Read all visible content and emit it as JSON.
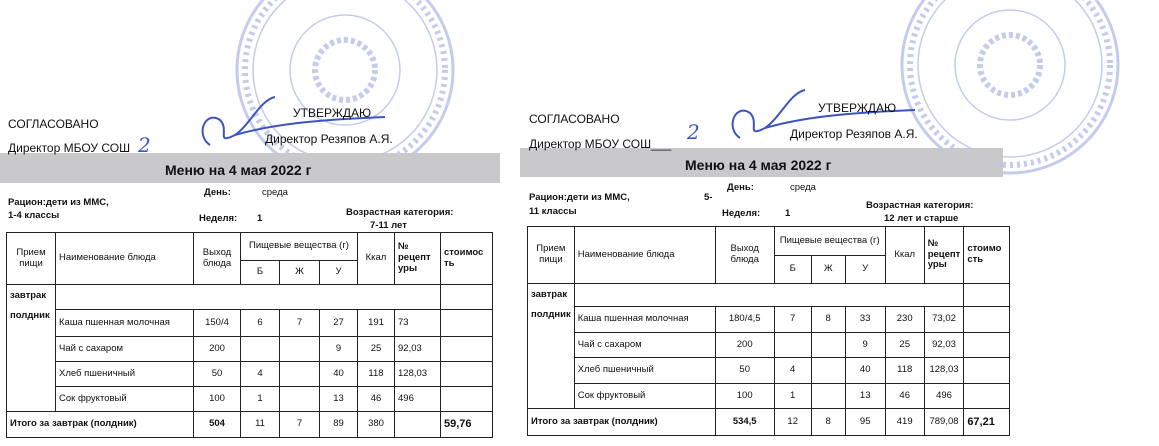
{
  "colors": {
    "stamp": "#7a8fd6",
    "signature": "#3d55c4",
    "band": "#c9c9cb"
  },
  "panels": [
    {
      "agreed": "СОГЛАСОВАНО",
      "director_school": "Директор МБОУ СОШ",
      "school_handwritten": "2",
      "approve": "УТВЕРЖДАЮ",
      "director_name": "Директор Резяпов А.Я.",
      "title": "Меню на 4 мая  2022 г",
      "ration_line1": "Рацион:дети из ММС,",
      "ration_extra": "",
      "ration_line2": "1-4 классы",
      "day_label": "День:",
      "day_value": "среда",
      "week_label": "Неделя:",
      "week_value": "1",
      "age_label": "Возрастная категория:",
      "age_value": "7-11 лет",
      "headers": {
        "meal": "Прием пищи",
        "dish": "Наименование блюда",
        "output": "Выход блюда",
        "nutrients": "Пищевые вещества (г)",
        "b": "Б",
        "zh": "Ж",
        "u": "У",
        "kcal": "Ккал",
        "recipe": "№ рецепт уры",
        "cost": "стоимос ть"
      },
      "meal_labels": [
        "завтрак",
        "полдник"
      ],
      "rows": [
        {
          "dish": "Каша пшенная молочная",
          "output": "150/4",
          "b": "6",
          "zh": "7",
          "u": "27",
          "kcal": "191",
          "recipe": "73",
          "cost": ""
        },
        {
          "dish": "Чай с сахаром",
          "output": "200",
          "b": "",
          "zh": "",
          "u": "9",
          "kcal": "25",
          "recipe": "92,03",
          "cost": ""
        },
        {
          "dish": "Хлеб пшеничный",
          "output": "50",
          "b": "4",
          "zh": "",
          "u": "40",
          "kcal": "118",
          "recipe": "128,03",
          "cost": ""
        },
        {
          "dish": "Сок фруктовый",
          "output": "100",
          "b": "1",
          "zh": "",
          "u": "13",
          "kcal": "46",
          "recipe": "496",
          "cost": ""
        }
      ],
      "total": {
        "label": "Итого за завтрак (полдник)",
        "output": "504",
        "b": "11",
        "zh": "7",
        "u": "89",
        "kcal": "380",
        "recipe": "",
        "cost": "59,76"
      }
    },
    {
      "agreed": "СОГЛАСОВАНО",
      "director_school": "Директор МБОУ СОШ___",
      "school_handwritten": "2",
      "approve": "УТВЕРЖДАЮ",
      "director_name": "Директор Резяпов А.Я.",
      "title": "Меню на 4 мая  2022 г",
      "ration_line1": "Рацион:дети из ММС,",
      "ration_extra": "5-",
      "ration_line2": "11 классы",
      "day_label": "День:",
      "day_value": "среда",
      "week_label": "Неделя:",
      "week_value": "1",
      "age_label": "Возрастная категория:",
      "age_value": "12 лет и старше",
      "headers": {
        "meal": "Прием пищи",
        "dish": "Наименование блюда",
        "output": "Выход блюда",
        "nutrients": "Пищевые вещества (г)",
        "b": "Б",
        "zh": "Ж",
        "u": "У",
        "kcal": "Ккал",
        "recipe": "№ рецепт уры",
        "cost": "стоимо сть"
      },
      "meal_labels": [
        "завтрак",
        "полдник"
      ],
      "rows": [
        {
          "dish": "Каша пшенная молочная",
          "output": "180/4,5",
          "b": "7",
          "zh": "8",
          "u": "33",
          "kcal": "230",
          "recipe": "73,02",
          "cost": ""
        },
        {
          "dish": "Чай с сахаром",
          "output": "200",
          "b": "",
          "zh": "",
          "u": "9",
          "kcal": "25",
          "recipe": "92,03",
          "cost": ""
        },
        {
          "dish": "Хлеб пшеничный",
          "output": "50",
          "b": "4",
          "zh": "",
          "u": "40",
          "kcal": "118",
          "recipe": "128,03",
          "cost": ""
        },
        {
          "dish": "Сок фруктовый",
          "output": "100",
          "b": "1",
          "zh": "",
          "u": "13",
          "kcal": "46",
          "recipe": "496",
          "cost": ""
        }
      ],
      "total": {
        "label": "Итого за завтрак (полдник)",
        "output": "534,5",
        "b": "12",
        "zh": "8",
        "u": "95",
        "kcal": "419",
        "recipe": "789,08",
        "cost": "67,21"
      }
    }
  ]
}
